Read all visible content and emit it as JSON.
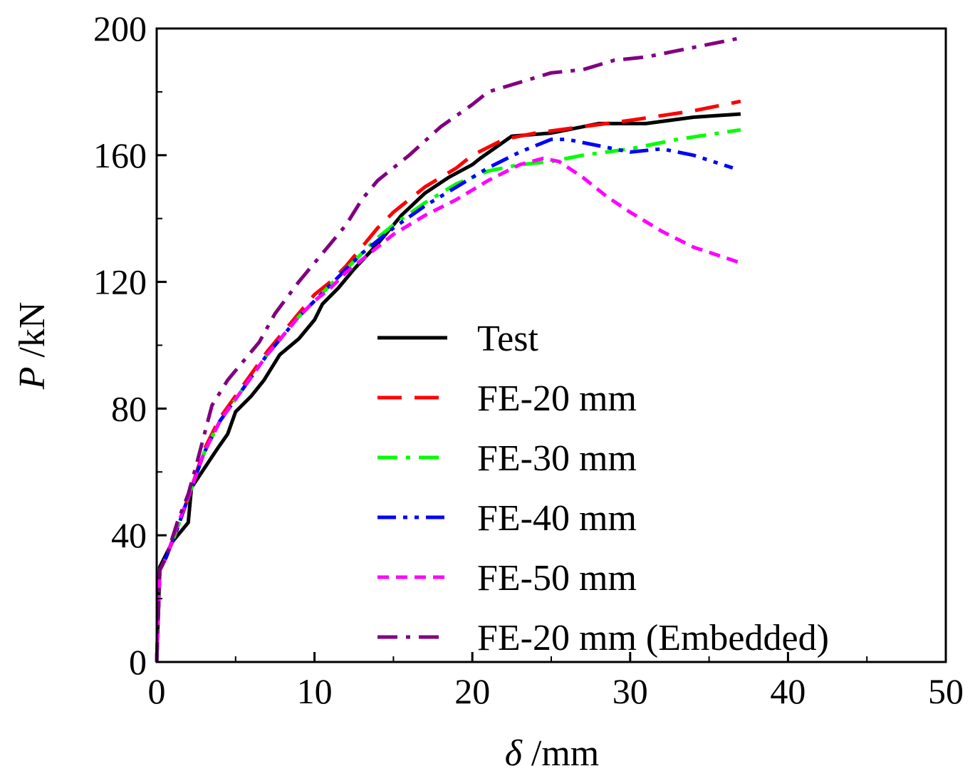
{
  "chart_data": {
    "type": "line",
    "xlabel": {
      "symbol": "δ",
      "unit": " /mm"
    },
    "ylabel": {
      "symbol": "P",
      "unit": " /kN"
    },
    "xlim": [
      0,
      50
    ],
    "ylim": [
      0,
      200
    ],
    "xticks": [
      0,
      10,
      20,
      30,
      40,
      50
    ],
    "yticks": [
      0,
      40,
      80,
      120,
      160,
      200
    ],
    "xtick_labels": [
      "0",
      "10",
      "20",
      "30",
      "40",
      "50"
    ],
    "ytick_labels": [
      "0",
      "40",
      "80",
      "120",
      "160",
      "200"
    ],
    "legend_position": "lower-right",
    "series": [
      {
        "name": "Test",
        "color": "#000000",
        "dash": "solid",
        "points": [
          [
            0,
            0
          ],
          [
            0.2,
            30
          ],
          [
            0.5,
            33
          ],
          [
            1,
            38
          ],
          [
            2,
            44
          ],
          [
            2.2,
            55
          ],
          [
            3,
            61
          ],
          [
            3.8,
            67
          ],
          [
            4.5,
            72
          ],
          [
            5,
            79
          ],
          [
            6,
            84
          ],
          [
            6.8,
            89
          ],
          [
            7.8,
            97
          ],
          [
            9,
            102
          ],
          [
            10,
            108
          ],
          [
            10.5,
            113
          ],
          [
            11.5,
            118
          ],
          [
            12.5,
            124
          ],
          [
            14,
            132
          ],
          [
            15.5,
            141
          ],
          [
            17,
            148
          ],
          [
            18.5,
            153
          ],
          [
            20,
            157
          ],
          [
            20.5,
            159
          ],
          [
            22.5,
            166
          ],
          [
            25,
            167
          ],
          [
            28,
            170
          ],
          [
            31,
            170
          ],
          [
            34,
            172
          ],
          [
            37,
            173
          ]
        ]
      },
      {
        "name": "FE-20 mm",
        "color": "#ff0000",
        "dash": "long-dash",
        "points": [
          [
            0,
            0
          ],
          [
            0.2,
            29
          ],
          [
            0.6,
            33
          ],
          [
            1.3,
            42
          ],
          [
            2,
            52
          ],
          [
            3,
            67
          ],
          [
            4,
            77
          ],
          [
            5,
            84
          ],
          [
            6,
            91
          ],
          [
            7,
            98
          ],
          [
            8,
            104
          ],
          [
            9,
            110
          ],
          [
            10,
            116
          ],
          [
            11,
            120
          ],
          [
            12,
            125
          ],
          [
            13,
            131
          ],
          [
            14,
            137
          ],
          [
            15,
            142
          ],
          [
            17,
            150
          ],
          [
            19,
            156
          ],
          [
            20,
            160
          ],
          [
            22,
            165
          ],
          [
            24,
            167
          ],
          [
            27,
            169
          ],
          [
            30,
            171
          ],
          [
            34,
            174
          ],
          [
            37,
            177
          ]
        ]
      },
      {
        "name": "FE-30 mm",
        "color": "#00ff00",
        "dash": "dash-dot",
        "points": [
          [
            0,
            0
          ],
          [
            0.2,
            29
          ],
          [
            0.6,
            33
          ],
          [
            1.3,
            42
          ],
          [
            2,
            52
          ],
          [
            3,
            66
          ],
          [
            4,
            76
          ],
          [
            5,
            83
          ],
          [
            6,
            90
          ],
          [
            7,
            97
          ],
          [
            8,
            103
          ],
          [
            9,
            109
          ],
          [
            10,
            114
          ],
          [
            11,
            119
          ],
          [
            12,
            124
          ],
          [
            13,
            129
          ],
          [
            14,
            134
          ],
          [
            15,
            138
          ],
          [
            17,
            145
          ],
          [
            19,
            151
          ],
          [
            21,
            155
          ],
          [
            23,
            157
          ],
          [
            25,
            158
          ],
          [
            27,
            160
          ],
          [
            30,
            162
          ],
          [
            33,
            165
          ],
          [
            37,
            168
          ]
        ]
      },
      {
        "name": "FE-40 mm",
        "color": "#0000ff",
        "dash": "dash-dot-dot",
        "points": [
          [
            0,
            0
          ],
          [
            0.2,
            29
          ],
          [
            0.6,
            33
          ],
          [
            1.3,
            42
          ],
          [
            2,
            52
          ],
          [
            3,
            66
          ],
          [
            4,
            76
          ],
          [
            5,
            83
          ],
          [
            6,
            90
          ],
          [
            7,
            97
          ],
          [
            8,
            103
          ],
          [
            9,
            109
          ],
          [
            10,
            114
          ],
          [
            11,
            119
          ],
          [
            12,
            124
          ],
          [
            13,
            129
          ],
          [
            14,
            133
          ],
          [
            15,
            137
          ],
          [
            17,
            144
          ],
          [
            19,
            150
          ],
          [
            21,
            156
          ],
          [
            23,
            161
          ],
          [
            25,
            165
          ],
          [
            26,
            165
          ],
          [
            28,
            163
          ],
          [
            30,
            161
          ],
          [
            32,
            162
          ],
          [
            34,
            160
          ],
          [
            36.5,
            156
          ]
        ]
      },
      {
        "name": "FE-50 mm",
        "color": "#ff00ff",
        "dash": "short-dash",
        "points": [
          [
            0,
            0
          ],
          [
            0.2,
            29
          ],
          [
            0.6,
            33
          ],
          [
            1.3,
            43
          ],
          [
            2,
            52
          ],
          [
            3,
            66
          ],
          [
            4,
            76
          ],
          [
            5,
            83
          ],
          [
            6,
            90
          ],
          [
            7,
            97
          ],
          [
            8,
            103
          ],
          [
            9,
            109
          ],
          [
            10,
            114
          ],
          [
            11,
            118
          ],
          [
            12,
            123
          ],
          [
            13,
            127
          ],
          [
            14,
            131
          ],
          [
            15,
            135
          ],
          [
            17,
            141
          ],
          [
            19,
            146
          ],
          [
            21,
            152
          ],
          [
            23,
            157
          ],
          [
            24.5,
            159
          ],
          [
            25.5,
            158
          ],
          [
            27,
            153
          ],
          [
            28.5,
            147
          ],
          [
            30,
            142
          ],
          [
            32,
            136
          ],
          [
            34,
            131
          ],
          [
            37,
            126
          ]
        ]
      },
      {
        "name": "FE-20 mm (Embedded)",
        "color": "#800080",
        "dash": "dash-dot",
        "points": [
          [
            0,
            0
          ],
          [
            0.2,
            29
          ],
          [
            0.6,
            33
          ],
          [
            1.3,
            44
          ],
          [
            2,
            53
          ],
          [
            2.5,
            62
          ],
          [
            3.5,
            81
          ],
          [
            4.5,
            89
          ],
          [
            5.5,
            95
          ],
          [
            6.5,
            101
          ],
          [
            7.5,
            110
          ],
          [
            9,
            120
          ],
          [
            10,
            126
          ],
          [
            11,
            132
          ],
          [
            12,
            138
          ],
          [
            13,
            146
          ],
          [
            14,
            152
          ],
          [
            16,
            160
          ],
          [
            18,
            169
          ],
          [
            20,
            176
          ],
          [
            21,
            180
          ],
          [
            23,
            183
          ],
          [
            25,
            186
          ],
          [
            27,
            187
          ],
          [
            29,
            190
          ],
          [
            31,
            191
          ],
          [
            33,
            193
          ],
          [
            35,
            195
          ],
          [
            37,
            197
          ]
        ]
      }
    ]
  }
}
